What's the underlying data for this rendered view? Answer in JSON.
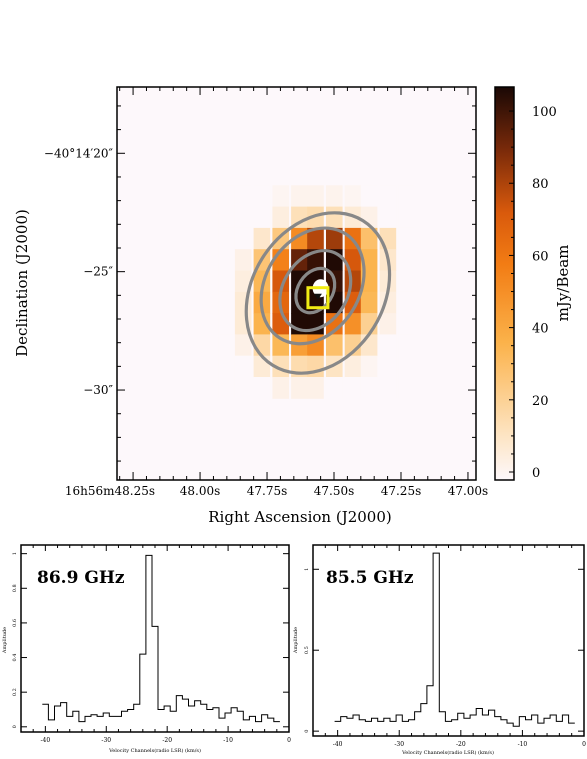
{
  "map": {
    "xlabel": "Right Ascension (J2000)",
    "ylabel": "Declination (J2000)",
    "x_tick_labels": [
      {
        "ra_s": 48.25,
        "label": "16h56m48.25s"
      },
      {
        "ra_s": 48.0,
        "label": "48.00s"
      },
      {
        "ra_s": 47.75,
        "label": "47.75s"
      },
      {
        "ra_s": 47.5,
        "label": "47.50s"
      },
      {
        "ra_s": 47.25,
        "label": "47.25s"
      },
      {
        "ra_s": 47.0,
        "label": "47.00s"
      }
    ],
    "y_tick_labels": [
      {
        "dec_arcsec": 20,
        "label": "−40°14′20″"
      },
      {
        "dec_arcsec": 25,
        "label": "−25″"
      },
      {
        "dec_arcsec": 30,
        "label": "−30″"
      }
    ],
    "colorbar": {
      "label": "mJy/Beam",
      "range": [
        0,
        105
      ],
      "ticks": [
        "0",
        "20",
        "40",
        "60",
        "80",
        "100"
      ],
      "colors": [
        "#fdf8fb",
        "#fde3c0",
        "#fbb24a",
        "#f27c14",
        "#d95a0c",
        "#7a2a0a",
        "#1a0805"
      ]
    },
    "marker_color": "#f2ec14",
    "contour_color": "#888888"
  },
  "chart_data": [
    {
      "type": "heatmap",
      "title": "",
      "xlabel": "Right Ascension (J2000)",
      "ylabel": "Declination (J2000)",
      "xlim": [
        48.31,
        46.97
      ],
      "ylim": [
        33.8,
        17.2
      ],
      "value_unit": "mJy/Beam",
      "pixel_ra_centers": [
        47.9,
        47.84,
        47.77,
        47.7,
        47.63,
        47.57,
        47.5,
        47.43,
        47.37,
        47.3,
        47.23
      ],
      "pixel_dec_centers": [
        21.8,
        22.7,
        23.6,
        24.5,
        25.4,
        26.3,
        27.2,
        28.1,
        29.0,
        29.9
      ],
      "pixel_values": [
        [
          0,
          0,
          0,
          2,
          3,
          3,
          3,
          2,
          0,
          0,
          0
        ],
        [
          0,
          0,
          0,
          6,
          14,
          16,
          14,
          8,
          4,
          0,
          0
        ],
        [
          0,
          0,
          10,
          26,
          52,
          78,
          82,
          62,
          30,
          14,
          0
        ],
        [
          0,
          4,
          28,
          56,
          92,
          100,
          104,
          72,
          36,
          10,
          0
        ],
        [
          0,
          6,
          34,
          72,
          104,
          104,
          100,
          78,
          36,
          8,
          0
        ],
        [
          0,
          8,
          40,
          66,
          104,
          104,
          104,
          70,
          34,
          6,
          0
        ],
        [
          0,
          8,
          36,
          70,
          104,
          104,
          62,
          50,
          22,
          4,
          0
        ],
        [
          0,
          4,
          18,
          34,
          44,
          52,
          30,
          22,
          10,
          0,
          0
        ],
        [
          0,
          0,
          8,
          14,
          16,
          18,
          12,
          6,
          2,
          0,
          0
        ],
        [
          0,
          0,
          0,
          4,
          4,
          4,
          0,
          0,
          0,
          0,
          0
        ]
      ],
      "colorbar": {
        "label": "mJy/Beam",
        "range": [
          0,
          105
        ],
        "ticks": [
          0,
          20,
          40,
          60,
          80,
          100
        ]
      },
      "contours": [
        {
          "level": 1,
          "ra_center": 47.56,
          "dec_center": 25.9,
          "ra_half_width_s": 0.245,
          "dec_half_width_arcsec": 3.6
        },
        {
          "level": 2,
          "ra_center": 47.58,
          "dec_center": 25.6,
          "ra_half_width_s": 0.175,
          "dec_half_width_arcsec": 2.6
        },
        {
          "level": 3,
          "ra_center": 47.57,
          "dec_center": 25.8,
          "ra_half_width_s": 0.12,
          "dec_half_width_arcsec": 1.8
        },
        {
          "level": 4,
          "ra_center": 47.57,
          "dec_center": 25.8,
          "ra_half_width_s": 0.065,
          "dec_half_width_arcsec": 1.0
        }
      ],
      "marker_box": {
        "ra": 47.56,
        "dec": 26.1
      },
      "peak_spot": {
        "ra": 47.55,
        "dec": 25.7
      }
    },
    {
      "type": "line",
      "step": true,
      "title": "86.9 GHz",
      "xlabel": "Velocity Channels(radio LSR) (km/s)",
      "ylabel": "Amplitude",
      "xlim": [
        -44,
        0
      ],
      "ylim": [
        -0.03,
        1.05
      ],
      "x_ticks": [
        -40,
        -30,
        -20,
        -10,
        0
      ],
      "y_ticks": [
        0,
        0.2,
        0.4,
        0.6,
        0.8,
        1
      ],
      "x": [
        -40,
        -39,
        -38,
        -37,
        -36,
        -35,
        -34,
        -33,
        -32,
        -31,
        -30,
        -29,
        -28,
        -27,
        -26,
        -25,
        -24,
        -23,
        -22,
        -21,
        -20,
        -19,
        -18,
        -17,
        -16,
        -15,
        -14,
        -13,
        -12,
        -11,
        -10,
        -9,
        -8,
        -7,
        -6,
        -5,
        -4,
        -3,
        -2
      ],
      "y": [
        0.13,
        0.04,
        0.12,
        0.14,
        0.06,
        0.09,
        0.03,
        0.06,
        0.07,
        0.06,
        0.08,
        0.06,
        0.06,
        0.09,
        0.1,
        0.13,
        0.42,
        0.99,
        0.58,
        0.1,
        0.12,
        0.09,
        0.18,
        0.16,
        0.12,
        0.15,
        0.13,
        0.1,
        0.11,
        0.05,
        0.08,
        0.11,
        0.09,
        0.04,
        0.06,
        0.03,
        0.07,
        0.05,
        0.03
      ]
    },
    {
      "type": "line",
      "step": true,
      "title": "85.5 GHz",
      "xlabel": "Velocity Channels(radio LSR) (km/s)",
      "ylabel": "Amplitude",
      "xlim": [
        -44,
        0
      ],
      "ylim": [
        -0.03,
        1.15
      ],
      "x_ticks": [
        -40,
        -30,
        -20,
        -10,
        0
      ],
      "y_ticks": [
        0,
        0.5,
        1
      ],
      "x": [
        -40,
        -39,
        -38,
        -37,
        -36,
        -35,
        -34,
        -33,
        -32,
        -31,
        -30,
        -29,
        -28,
        -27,
        -26,
        -25,
        -24,
        -23,
        -22,
        -21,
        -20,
        -19,
        -18,
        -17,
        -16,
        -15,
        -14,
        -13,
        -12,
        -11,
        -10,
        -9,
        -8,
        -7,
        -6,
        -5,
        -4,
        -3,
        -2
      ],
      "y": [
        0.06,
        0.09,
        0.08,
        0.1,
        0.07,
        0.06,
        0.08,
        0.06,
        0.08,
        0.06,
        0.1,
        0.06,
        0.07,
        0.12,
        0.17,
        0.28,
        1.1,
        0.12,
        0.06,
        0.07,
        0.11,
        0.08,
        0.1,
        0.14,
        0.1,
        0.13,
        0.09,
        0.07,
        0.05,
        0.03,
        0.09,
        0.07,
        0.1,
        0.05,
        0.08,
        0.1,
        0.06,
        0.1,
        0.05
      ]
    }
  ]
}
